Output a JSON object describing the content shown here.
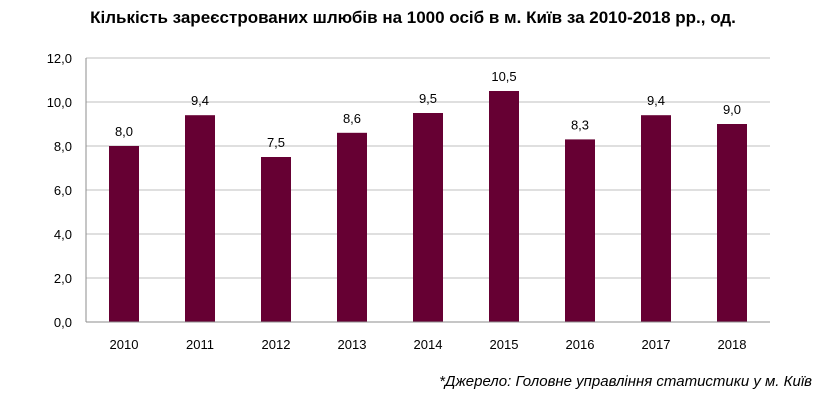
{
  "title": "Кількість зареєстрованих шлюбів на 1000 осіб в м. Київ за 2010-2018 рр., од.",
  "source": "*Джерело: Головне управління статистики у м. Київ",
  "chart_data": {
    "type": "bar",
    "categories": [
      "2010",
      "2011",
      "2012",
      "2013",
      "2014",
      "2015",
      "2016",
      "2017",
      "2018"
    ],
    "values": [
      8.0,
      9.4,
      7.5,
      8.6,
      9.5,
      10.5,
      8.3,
      9.4,
      9.0
    ],
    "data_labels": [
      "8,0",
      "9,4",
      "7,5",
      "8,6",
      "9,5",
      "10,5",
      "8,3",
      "9,4",
      "9,0"
    ],
    "y_ticks": [
      "0,0",
      "2,0",
      "4,0",
      "6,0",
      "8,0",
      "10,0",
      "12,0"
    ],
    "ylim": [
      0,
      12
    ],
    "ystep": 2,
    "grid": true,
    "bar_color": "#660033"
  }
}
